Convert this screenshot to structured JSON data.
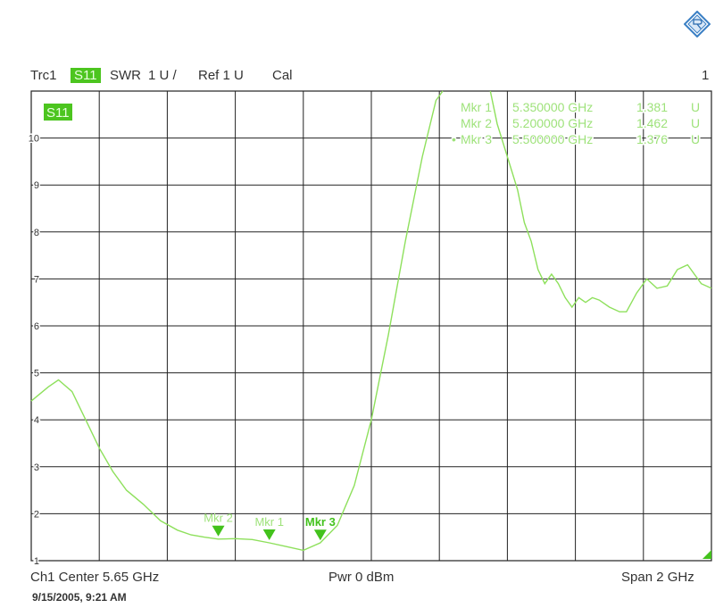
{
  "header": {
    "trace": "Trc1",
    "param": "S11",
    "format": "SWR",
    "scale": "1 U /",
    "ref": "Ref 1 U",
    "cal": "Cal",
    "channel_num": "1"
  },
  "trace_badge": "S11",
  "markers": [
    {
      "label": "Mkr 1",
      "freq": "5.350000 GHz",
      "value": "1.381",
      "unit": "U",
      "active": false,
      "x_ghz": 5.35,
      "swr": 1.381
    },
    {
      "label": "Mkr 2",
      "freq": "5.200000 GHz",
      "value": "1.462",
      "unit": "U",
      "active": false,
      "x_ghz": 5.2,
      "swr": 1.462
    },
    {
      "label": "Mkr 3",
      "freq": "5.500000 GHz",
      "value": "1.376",
      "unit": "U",
      "active": true,
      "x_ghz": 5.5,
      "swr": 1.376
    }
  ],
  "marker_tags": [
    "Mkr 2",
    "Mkr 1",
    "Mkr 3"
  ],
  "footer": {
    "center": "Ch1 Center 5.65 GHz",
    "power": "Pwr 0 dBm",
    "span": "Span 2 GHz"
  },
  "timestamp": "9/15/2005, 9:21 AM",
  "colors": {
    "trace": "#8ee05c",
    "grid": "#222222",
    "marker": "#43c21c",
    "marker_text": "#9ee27a",
    "badge": "#4cc51f"
  },
  "chart_data": {
    "type": "line",
    "xlim": [
      4.65,
      6.65
    ],
    "ylim": [
      1,
      11
    ],
    "x_unit": "GHz",
    "y_ticks": [
      "1",
      "2",
      "3",
      "4",
      "5",
      "6",
      "7",
      "8",
      "9",
      "10"
    ],
    "grid": true,
    "series": [
      {
        "x": [
          4.65,
          4.7,
          4.73,
          4.77,
          4.81,
          4.85,
          4.89,
          4.93,
          4.98,
          5.03,
          5.08,
          5.12,
          5.16,
          5.2,
          5.25,
          5.3,
          5.35,
          5.4,
          5.45,
          5.5,
          5.55,
          5.6,
          5.65,
          5.7,
          5.75,
          5.8,
          5.84,
          5.86
        ],
        "y": [
          4.4,
          4.7,
          4.85,
          4.6,
          4.0,
          3.4,
          2.9,
          2.5,
          2.2,
          1.85,
          1.65,
          1.55,
          1.5,
          1.46,
          1.47,
          1.45,
          1.38,
          1.3,
          1.22,
          1.38,
          1.75,
          2.6,
          4.0,
          5.8,
          7.8,
          9.6,
          10.8,
          11.0
        ]
      },
      {
        "x": [
          6.0,
          6.02,
          6.05,
          6.08,
          6.1,
          6.12,
          6.14,
          6.16,
          6.18,
          6.2,
          6.22,
          6.24,
          6.26,
          6.28,
          6.3,
          6.32,
          6.35,
          6.38,
          6.4,
          6.43,
          6.46,
          6.49,
          6.52,
          6.55,
          6.58,
          6.6,
          6.62,
          6.65
        ],
        "y": [
          11.0,
          10.3,
          9.6,
          8.9,
          8.2,
          7.8,
          7.2,
          6.9,
          7.1,
          6.9,
          6.6,
          6.4,
          6.6,
          6.5,
          6.6,
          6.55,
          6.4,
          6.3,
          6.3,
          6.7,
          7.0,
          6.8,
          6.85,
          7.2,
          7.3,
          7.1,
          6.9,
          6.8
        ]
      }
    ]
  }
}
